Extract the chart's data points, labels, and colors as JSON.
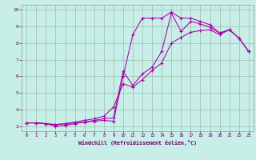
{
  "xlabel": "Windchill (Refroidissement éolien,°C)",
  "bg_color": "#c8eee8",
  "line_color": "#aa00aa",
  "xlim": [
    -0.5,
    23.5
  ],
  "ylim": [
    2.7,
    10.3
  ],
  "xticks": [
    0,
    1,
    2,
    3,
    4,
    5,
    6,
    7,
    8,
    9,
    10,
    11,
    12,
    13,
    14,
    15,
    16,
    17,
    18,
    19,
    20,
    21,
    22,
    23
  ],
  "yticks": [
    3,
    4,
    5,
    6,
    7,
    8,
    9,
    10
  ],
  "grid_color": "#99bbaa",
  "series1_x": [
    0,
    1,
    2,
    3,
    4,
    5,
    6,
    7,
    8,
    9,
    10,
    11,
    12,
    13,
    14,
    15,
    16,
    17,
    18,
    19,
    20,
    21,
    22,
    23
  ],
  "series1_y": [
    3.2,
    3.2,
    3.15,
    3.1,
    3.15,
    3.2,
    3.25,
    3.3,
    3.35,
    3.3,
    6.0,
    8.5,
    9.5,
    9.5,
    9.5,
    9.85,
    9.5,
    9.5,
    9.3,
    9.1,
    8.6,
    8.8,
    8.3,
    7.5
  ],
  "series2_x": [
    0,
    1,
    2,
    3,
    4,
    5,
    6,
    7,
    8,
    9,
    10,
    11,
    12,
    13,
    14,
    15,
    16,
    17,
    18,
    19,
    20,
    21,
    22,
    23
  ],
  "series2_y": [
    3.2,
    3.2,
    3.15,
    3.1,
    3.15,
    3.25,
    3.35,
    3.45,
    3.6,
    4.15,
    5.55,
    5.35,
    5.8,
    6.35,
    6.8,
    8.0,
    8.35,
    8.65,
    8.75,
    8.8,
    8.5,
    8.8,
    8.3,
    7.5
  ],
  "series3_x": [
    0,
    1,
    2,
    3,
    4,
    5,
    6,
    7,
    8,
    9,
    10,
    11,
    12,
    13,
    14,
    15,
    16,
    17,
    18,
    19,
    20,
    21,
    22,
    23
  ],
  "series3_y": [
    3.2,
    3.2,
    3.15,
    3.0,
    3.05,
    3.15,
    3.25,
    3.35,
    3.45,
    3.5,
    6.3,
    5.45,
    6.15,
    6.55,
    7.5,
    9.8,
    8.7,
    9.3,
    9.15,
    8.95,
    8.6,
    8.8,
    8.3,
    7.5
  ]
}
